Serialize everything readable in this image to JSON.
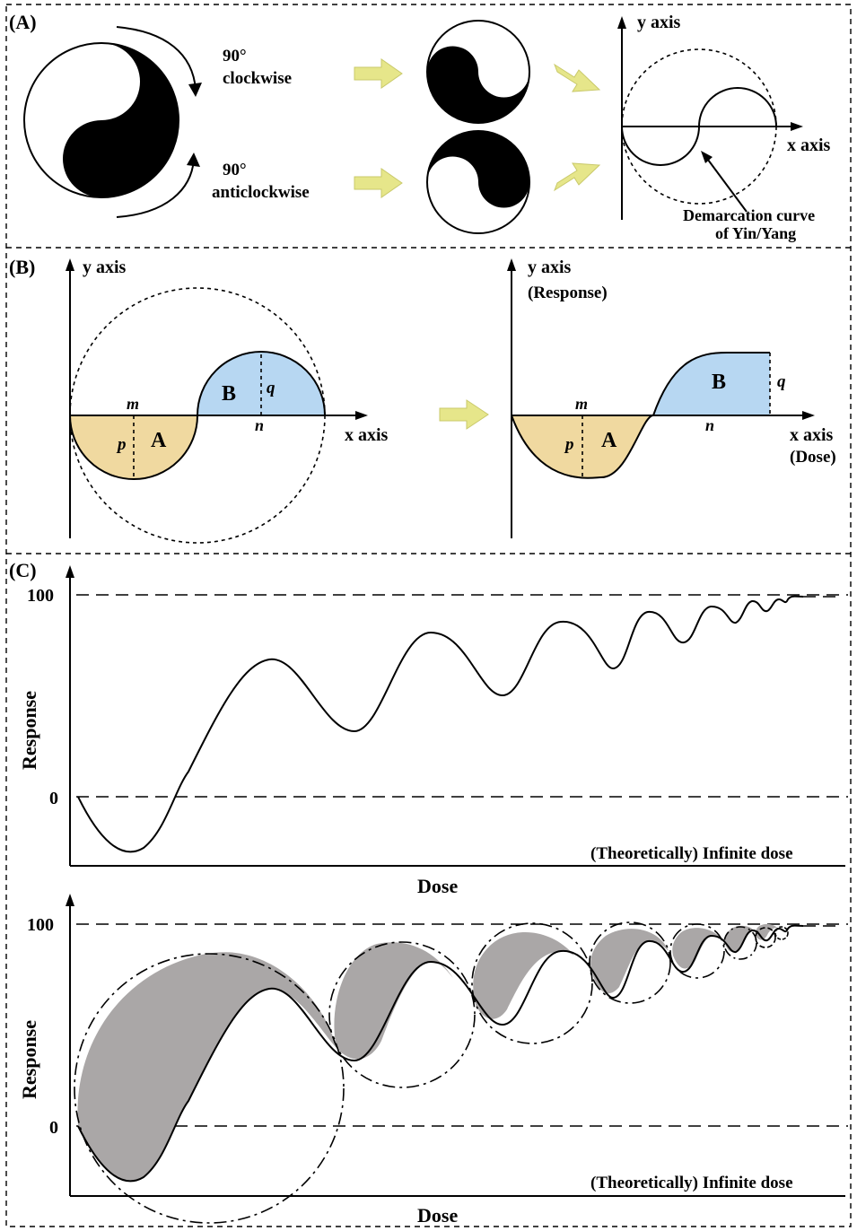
{
  "panel_a": {
    "label": "(A)",
    "rotate_cw_degree": "90°",
    "rotate_cw_text": "clockwise",
    "rotate_acw_degree": "90°",
    "rotate_acw_text": "anticlockwise",
    "y_axis": "y axis",
    "x_axis": "x axis",
    "callout_line1": "Demarcation curve",
    "callout_line2": "of Yin/Yang"
  },
  "panel_b": {
    "label": "(B)",
    "left": {
      "y_axis": "y axis",
      "x_axis": "x axis",
      "m": "m",
      "n": "n",
      "p": "p",
      "q": "q",
      "region_a": "A",
      "region_b": "B"
    },
    "right": {
      "y_axis": "y axis",
      "y_axis_sub": "(Response)",
      "x_axis": "x axis",
      "x_axis_sub": "(Dose)",
      "m": "m",
      "n": "n",
      "p": "p",
      "q": "q",
      "region_a": "A",
      "region_b": "B"
    },
    "fill_a_color": "#f0d9a0",
    "fill_b_color": "#b7d7f2"
  },
  "panel_c": {
    "label": "(C)",
    "top": {
      "ylabel": "Response",
      "xlabel": "Dose",
      "tick_100": "100",
      "tick_0": "0",
      "annotation": "(Theoretically) Infinite dose"
    },
    "bottom": {
      "ylabel": "Response",
      "xlabel": "Dose",
      "tick_100": "100",
      "tick_0": "0",
      "annotation": "(Theoretically) Infinite dose"
    },
    "shade_color": "#aaa7a7"
  }
}
